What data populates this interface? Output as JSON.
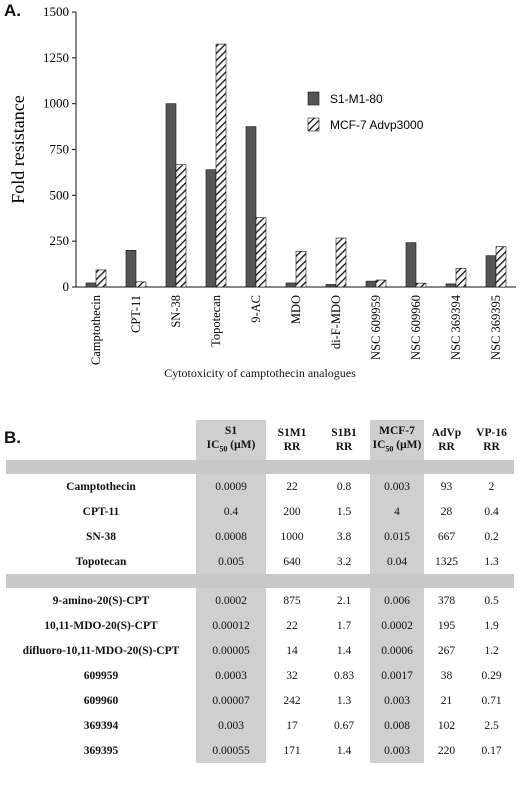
{
  "panel_a_label": "A.",
  "panel_b_label": "B.",
  "chart_data": {
    "type": "bar",
    "ylabel": "Fold resistance",
    "xlabel": "Cytotoxicity of camptothecin analogues",
    "ylim": [
      0,
      1500
    ],
    "yticks": [
      0,
      250,
      500,
      750,
      1000,
      1250,
      1500
    ],
    "legend_position": "right",
    "categories": [
      "Camptothecin",
      "CPT-11",
      "SN-38",
      "Topotecan",
      "9-AC",
      "MDO",
      "di-F-MDO",
      "NSC 609959",
      "NSC 609960",
      "NSC 369394",
      "NSC 369395"
    ],
    "series": [
      {
        "name": "S1-M1-80",
        "values": [
          22,
          200,
          1000,
          640,
          875,
          22,
          14,
          32,
          242,
          17,
          171
        ],
        "fill": "solid",
        "color": "#555555"
      },
      {
        "name": "MCF-7 Advp3000",
        "values": [
          93,
          28,
          667,
          1325,
          378,
          195,
          267,
          38,
          21,
          102,
          220
        ],
        "fill": "hatch",
        "color": "#111111"
      }
    ]
  },
  "table": {
    "headers": [
      {
        "line1": "",
        "line2": ""
      },
      {
        "line1": "S1",
        "line2": "IC",
        "sub": "50",
        "unit": " (μM)"
      },
      {
        "line1": "S1M1",
        "line2": "RR"
      },
      {
        "line1": "S1B1",
        "line2": "RR"
      },
      {
        "line1": "MCF-7",
        "line2": "IC",
        "sub": "50",
        "unit": " (μM)"
      },
      {
        "line1": "AdVp",
        "line2": "RR"
      },
      {
        "line1": "VP-16",
        "line2": "RR"
      }
    ],
    "group1": [
      [
        "Camptothecin",
        "0.0009",
        "22",
        "0.8",
        "0.003",
        "93",
        "2"
      ],
      [
        "CPT-11",
        "0.4",
        "200",
        "1.5",
        "4",
        "28",
        "0.4"
      ],
      [
        "SN-38",
        "0.0008",
        "1000",
        "3.8",
        "0.015",
        "667",
        "0.2"
      ],
      [
        "Topotecan",
        "0.005",
        "640",
        "3.2",
        "0.04",
        "1325",
        "1.3"
      ]
    ],
    "group2": [
      [
        "9-amino-20(S)-CPT",
        "0.0002",
        "875",
        "2.1",
        "0.006",
        "378",
        "0.5"
      ],
      [
        "10,11-MDO-20(S)-CPT",
        "0.00012",
        "22",
        "1.7",
        "0.0002",
        "195",
        "1.9"
      ],
      [
        "difluoro-10,11-MDO-20(S)-CPT",
        "0.00005",
        "14",
        "1.4",
        "0.0006",
        "267",
        "1.2"
      ],
      [
        "609959",
        "0.0003",
        "32",
        "0.83",
        "0.0017",
        "38",
        "0.29"
      ],
      [
        "609960",
        "0.00007",
        "242",
        "1.3",
        "0.003",
        "21",
        "0.71"
      ],
      [
        "369394",
        "0.003",
        "17",
        "0.67",
        "0.008",
        "102",
        "2.5"
      ],
      [
        "369395",
        "0.00055",
        "171",
        "1.4",
        "0.003",
        "220",
        "0.17"
      ]
    ]
  }
}
